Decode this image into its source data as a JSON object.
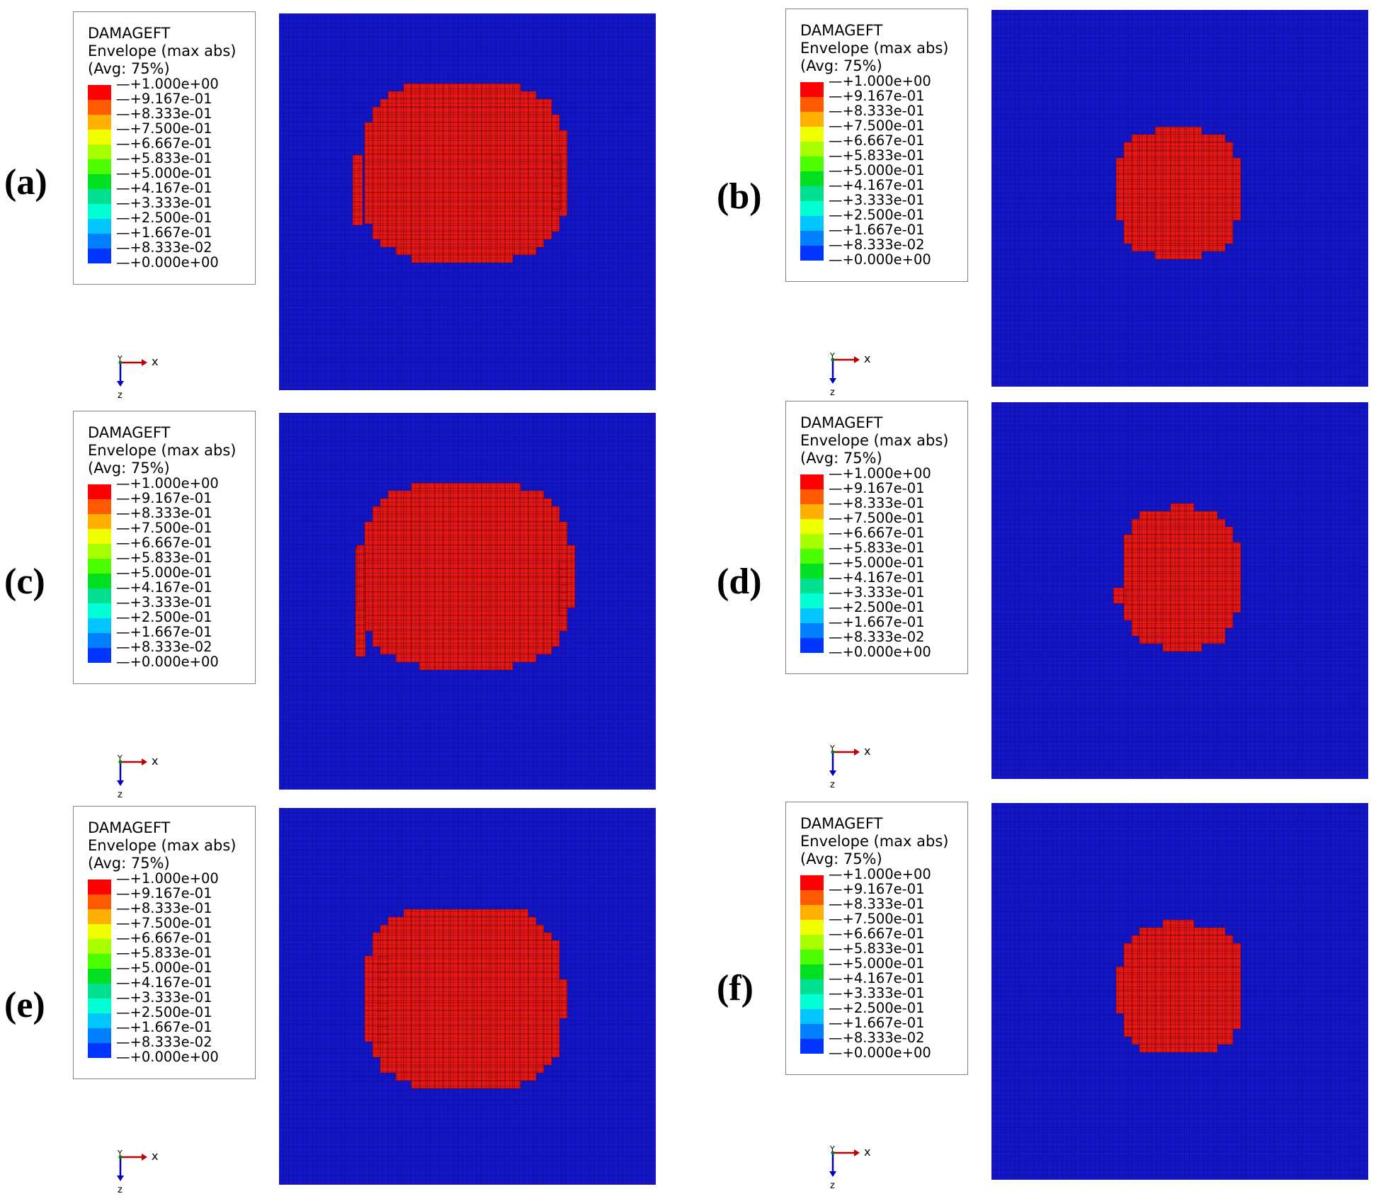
{
  "legend": {
    "title": "DAMAGEFT",
    "subtitle": "Envelope (max abs)",
    "avg": "(Avg: 75%)",
    "values": [
      "+1.000e+00",
      "+9.167e-01",
      "+8.333e-01",
      "+7.500e-01",
      "+6.667e-01",
      "+5.833e-01",
      "+5.000e-01",
      "+4.167e-01",
      "+3.333e-01",
      "+2.500e-01",
      "+1.667e-01",
      "+8.333e-02",
      "+0.000e+00"
    ],
    "colors": [
      "#ff0000",
      "#ff5a00",
      "#ffb000",
      "#f0ff00",
      "#a8ff00",
      "#4bff00",
      "#00e020",
      "#00e090",
      "#00ffd5",
      "#00c5ff",
      "#0080ff",
      "#0035ff",
      "#0000e0"
    ]
  },
  "triad": {
    "axis_x": "x",
    "axis_y": "Y",
    "axis_z": "z"
  },
  "panels": [
    {
      "label": "(a)"
    },
    {
      "label": "(b)"
    },
    {
      "label": "(c)"
    },
    {
      "label": "(d)"
    },
    {
      "label": "(e)"
    },
    {
      "label": "(f)"
    }
  ],
  "colors": {
    "background": "#1515c8",
    "damage": "#e8170f",
    "mesh_line": "#0a0a60"
  }
}
